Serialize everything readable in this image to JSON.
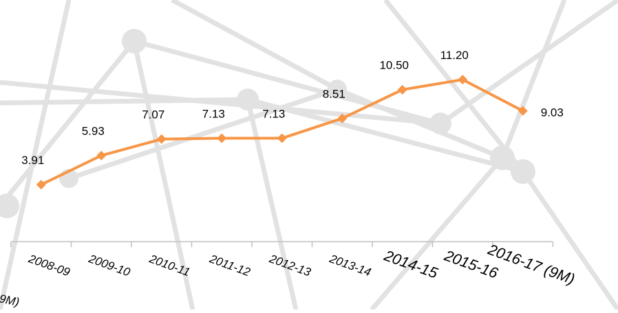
{
  "chart_data": {
    "type": "line",
    "categories": [
      "2008-09",
      "2009-10",
      "2010-11",
      "2011-12",
      "2012-13",
      "2013-14",
      "2014-15",
      "2015-16",
      "2016-17 (9M)"
    ],
    "values": [
      3.91,
      5.93,
      7.07,
      7.13,
      7.13,
      8.51,
      10.5,
      11.2,
      9.03
    ],
    "value_labels": [
      "3.91",
      "5.93",
      "7.07",
      "7.13",
      "7.13",
      "8.51",
      "10.50",
      "11.20",
      "9.03"
    ],
    "color": "#f79646",
    "annotation": "9M)"
  }
}
